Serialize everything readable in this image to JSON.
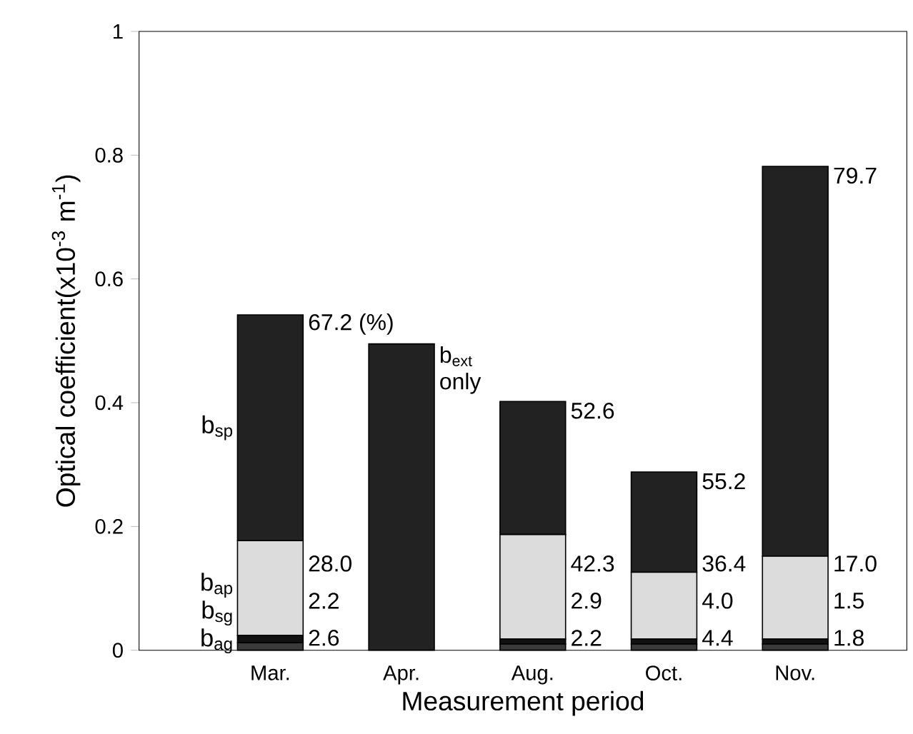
{
  "chart_data": {
    "type": "bar",
    "stacked": true,
    "xlabel": "Measurement period",
    "ylabel": "Optical coefficient(x10$^{-3}$ m$^{-1}$)",
    "categories": [
      "Mar.",
      "Apr.",
      "Aug.",
      "Oct.",
      "Nov."
    ],
    "series": [
      {
        "name": "b$_{ag}$",
        "color": "#3a3a3a",
        "values": [
          0.012,
          null,
          0.01,
          0.01,
          0.01
        ]
      },
      {
        "name": "b$_{sg}$",
        "color": "#111111",
        "values": [
          0.012,
          null,
          0.008,
          0.008,
          0.008
        ]
      },
      {
        "name": "b$_{ap}$",
        "color": "#dcdcdc",
        "values": [
          0.153,
          null,
          0.169,
          0.108,
          0.134
        ]
      },
      {
        "name": "b$_{sp}$",
        "color": "#222222",
        "values": [
          0.365,
          0.495,
          0.215,
          0.162,
          0.63
        ]
      }
    ],
    "ylim": [
      0,
      1
    ],
    "yticks": [
      0,
      0.2,
      0.4,
      0.6,
      0.8,
      1
    ],
    "annotations": [
      "2.6",
      "2.2",
      "28.0",
      "67.2 (%)",
      "b$_{ext}$ only",
      "2.2",
      "2.9",
      "42.3",
      "52.6",
      "4.4",
      "4.0",
      "36.4",
      "55.2",
      "1.8",
      "1.5",
      "17.0",
      "79.7"
    ]
  }
}
